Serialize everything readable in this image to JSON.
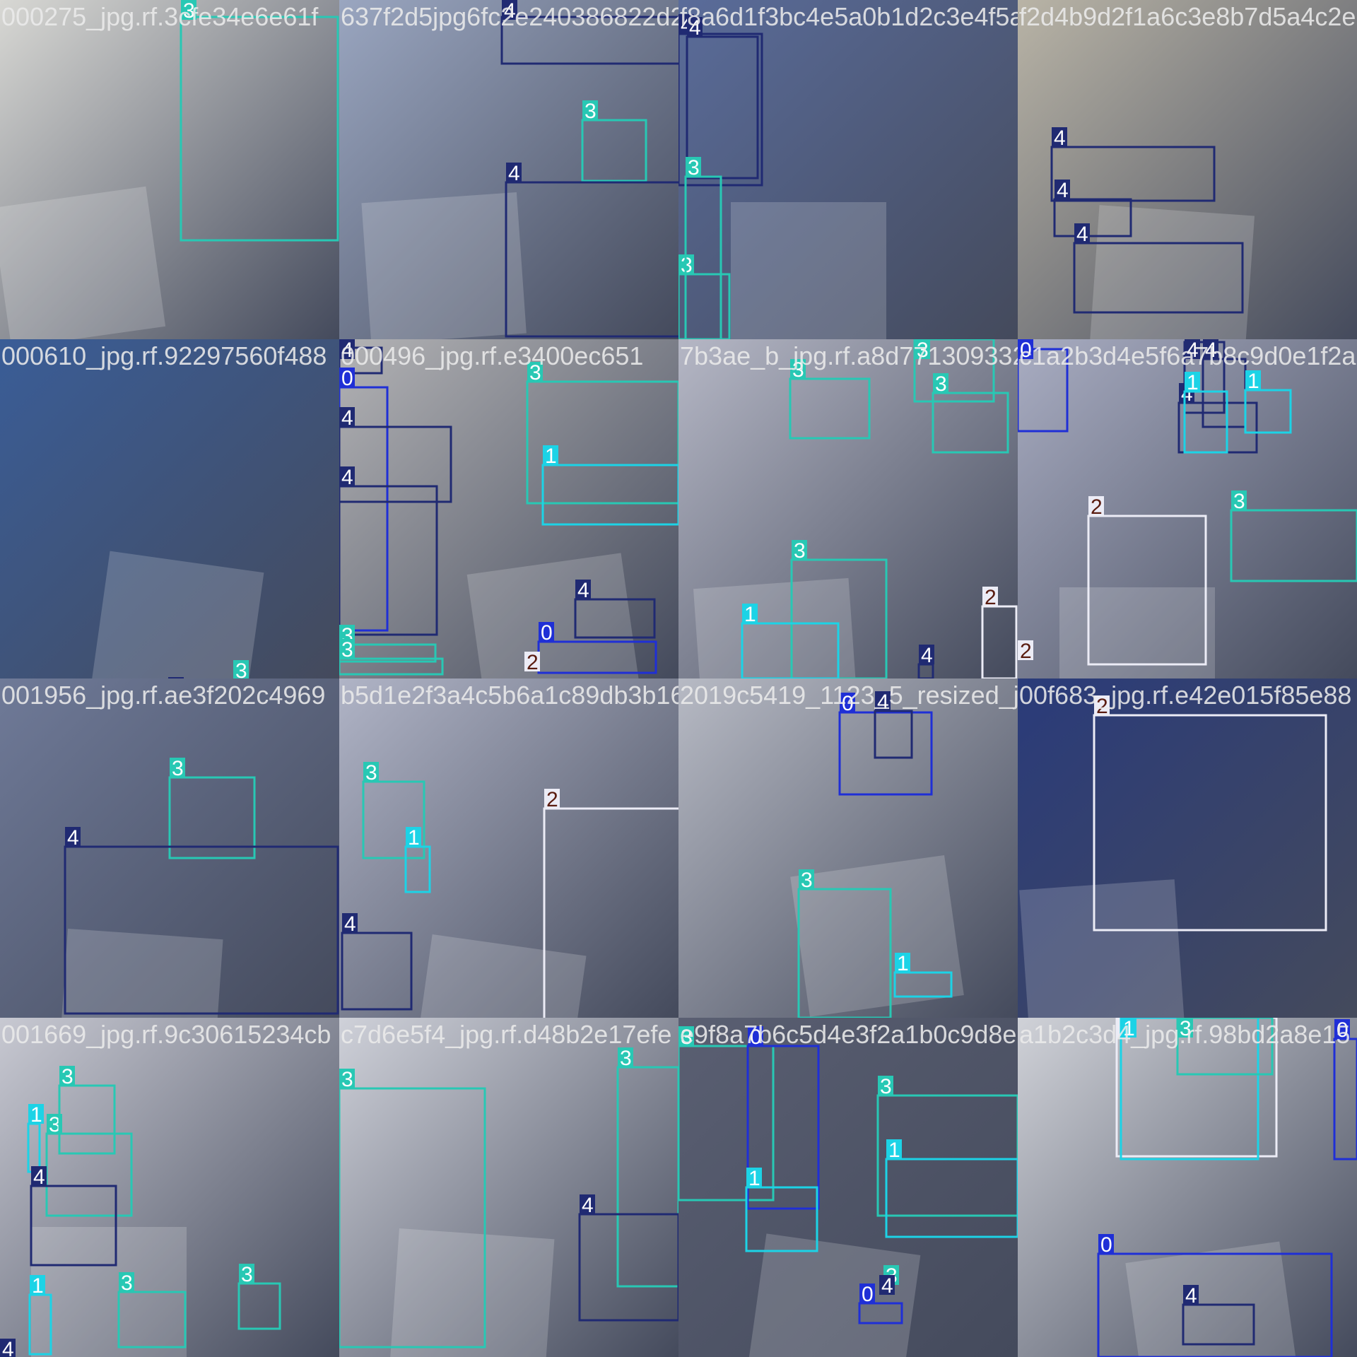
{
  "mosaic_rows": 4,
  "mosaic_cols": 4,
  "class_colors": {
    "0": "#1f2fd6",
    "1": "#1cd3e6",
    "2": "#ececf6",
    "3": "#28c8b4",
    "4": "#202a72"
  },
  "class_label_text_colors": {
    "0": "#ffffff",
    "1": "#ffffff",
    "2": "#5a1c10",
    "3": "#ffffff",
    "4": "#ffffff"
  },
  "tiles": [
    {
      "filename": "000275_jpg.rf.3cfe34e6e61f",
      "bg": "#d8d8d4",
      "labels": [
        "3"
      ]
    },
    {
      "filename": "637f2d5jpg6fc2e240386822d23604550b8c9df3b50764",
      "bg": "#9aa6c0",
      "labels": [
        "4",
        "3",
        "4"
      ]
    },
    {
      "filename": "f8a6d1f3bc4e5a0b1d2c3e4f5a6b7c8",
      "bg": "#5a6c9a",
      "labels": [
        "4",
        "3",
        "4",
        "3"
      ]
    },
    {
      "filename": "f2d4b9d2f1a6c3e8b7d5a4c2e1f0b9",
      "bg": "#b9b4a6",
      "labels": [
        "4",
        "4",
        "4"
      ]
    },
    {
      "filename": "000610_jpg.rf.92297560f488",
      "bg": "#3a5d97",
      "labels": [
        "3",
        "4",
        "4"
      ]
    },
    {
      "filename": "000496_jpg.rf.e3400ec651",
      "bg": "#b3b3b5",
      "labels": [
        "4",
        "0",
        "4",
        "4",
        "3",
        "1",
        "3",
        "3",
        "4",
        "0",
        "2"
      ]
    },
    {
      "filename": "7b3ae_b_jpg.rf.a8d771309332b",
      "bg": "#b5b7c5",
      "labels": [
        "3",
        "3",
        "3",
        "3",
        "1",
        "2",
        "4"
      ]
    },
    {
      "filename": "c1a2b3d4e5f6a7b8c9d0e1f2a3b4c5",
      "bg": "#a9adc2",
      "labels": [
        "0",
        "4",
        "4",
        "4",
        "1",
        "1",
        "2",
        "3",
        "2"
      ]
    },
    {
      "filename": "001956_jpg.rf.ae3f202c4969",
      "bg": "#6f7a98",
      "labels": [
        "3",
        "4"
      ]
    },
    {
      "filename": "b5d1e2f3a4c5b6a1c89db3b162",
      "bg": "#b0b4c6",
      "labels": [
        "3",
        "1",
        "4",
        "2"
      ]
    },
    {
      "filename": "2019c5419_1123_5_resized_jpg.rf",
      "bg": "#b7bac4",
      "labels": [
        "0",
        "4",
        "3",
        "1"
      ]
    },
    {
      "filename": "00f683_jpg.rf.e42e015f85e88",
      "bg": "#2a3b7a",
      "labels": [
        "2"
      ]
    },
    {
      "filename": "001669_jpg.rf.9c30615234cb",
      "bg": "#c8c9d2",
      "labels": [
        "3",
        "3",
        "1",
        "4",
        "3",
        "1",
        "3",
        "4"
      ]
    },
    {
      "filename": "c7d6e5f4_jpg.rf.d48b2e17efe",
      "bg": "#cfd1d9",
      "labels": [
        "3",
        "3",
        "4"
      ]
    },
    {
      "filename": "e9f8a7b6c5d4e3f2a1b0c9d8e7",
      "bg": "#5a5f72",
      "labels": [
        "3",
        "0",
        "1",
        "3",
        "1",
        "3",
        "0",
        "4"
      ]
    },
    {
      "filename": "a1b2c3d4_jpg.rf.98bd2a8e15",
      "bg": "#d0d2d8",
      "labels": [
        "2",
        "1",
        "3",
        "0",
        "0",
        "4"
      ]
    }
  ]
}
